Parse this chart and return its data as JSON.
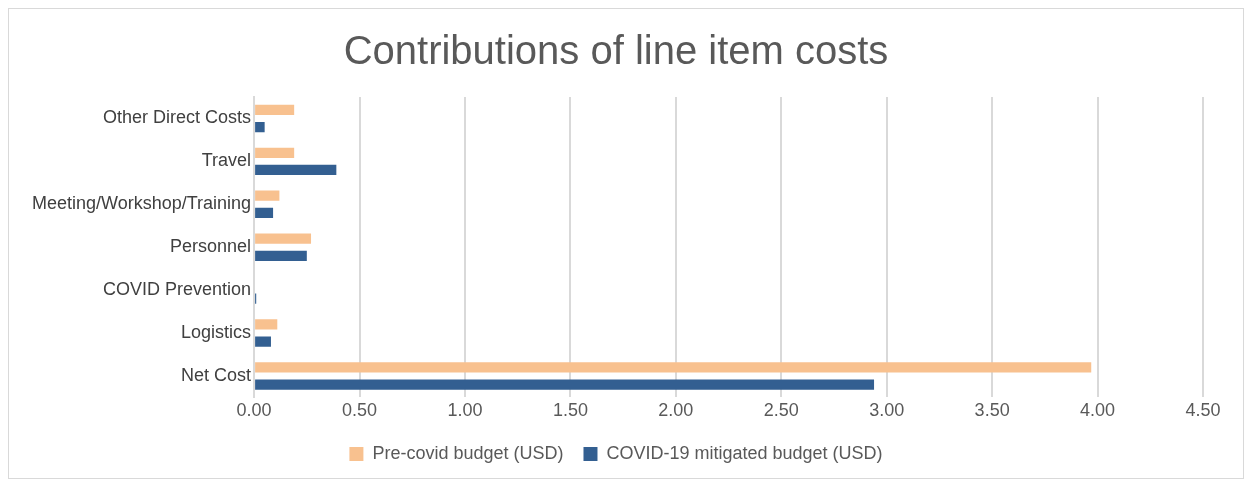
{
  "chart_data": {
    "type": "bar",
    "orientation": "horizontal",
    "title": "Contributions of line item costs",
    "categories": [
      "Other Direct Costs",
      "Travel",
      "Meeting/Workshop/Training",
      "Personnel",
      "COVID Prevention",
      "Logistics",
      "Net Cost"
    ],
    "series": [
      {
        "name": "Pre-covid budget (USD)",
        "color": "#f8c18f",
        "values": [
          0.19,
          0.19,
          0.12,
          0.27,
          0,
          0.11,
          3.97
        ]
      },
      {
        "name": "COVID-19 mitigated budget (USD)",
        "color": "#335f91",
        "values": [
          0.05,
          0.39,
          0.09,
          0.25,
          0.01,
          0.08,
          2.94
        ]
      }
    ],
    "xlim": [
      0,
      4.5
    ],
    "xticks": [
      {
        "value": 0,
        "label": "0.00"
      },
      {
        "value": 0.5,
        "label": "0.50"
      },
      {
        "value": 1,
        "label": "1.00"
      },
      {
        "value": 1.5,
        "label": "1.50"
      },
      {
        "value": 2,
        "label": "2.00"
      },
      {
        "value": 2.5,
        "label": "2.50"
      },
      {
        "value": 3,
        "label": "3.00"
      },
      {
        "value": 3.5,
        "label": "3.50"
      },
      {
        "value": 4,
        "label": "4.00"
      },
      {
        "value": 4.5,
        "label": "4.50"
      }
    ],
    "grid": "x",
    "legend": "bottom"
  }
}
